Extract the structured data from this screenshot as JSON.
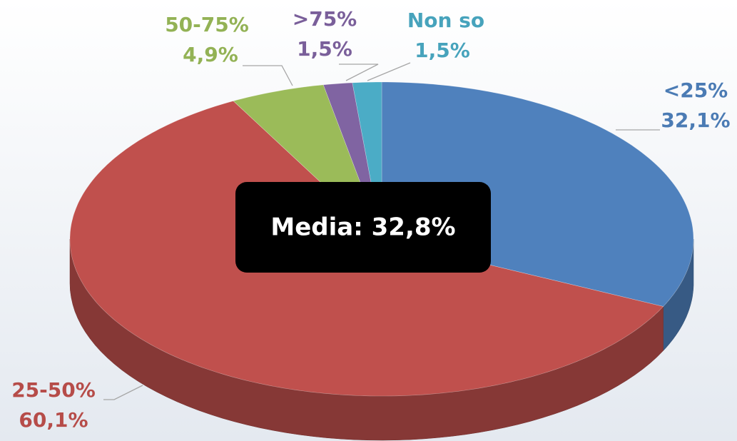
{
  "chart_data": {
    "type": "pie",
    "categories": [
      "<25%",
      "25-50%",
      "50-75%",
      ">75%",
      "Non so"
    ],
    "values": [
      32.1,
      60.1,
      4.9,
      1.5,
      1.5
    ],
    "value_labels": [
      "32,1%",
      "60,1%",
      "4,9%",
      "1,5%",
      "1,5%"
    ],
    "colors": [
      "#4f81bd",
      "#c0504d",
      "#9bbb59",
      "#8064a2",
      "#4bacc6"
    ],
    "annotation": "Media: 32,8%"
  }
}
